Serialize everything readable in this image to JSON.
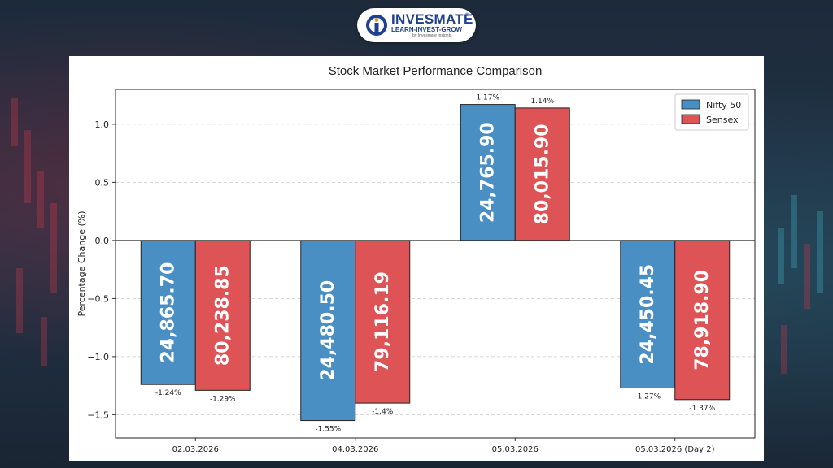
{
  "brand": {
    "name": "INVESMATE",
    "tagline": "LEARN-INVEST-GROW",
    "byline": "by Invesmate Insights",
    "registered": "®"
  },
  "chart_data": {
    "type": "bar",
    "title": "Stock Market Performance Comparison",
    "xlabel": "",
    "ylabel": "Percentage Change (%)",
    "ylim": [
      -1.7,
      1.3
    ],
    "yticks": [
      -1.5,
      -1.0,
      -0.5,
      0.0,
      0.5,
      1.0
    ],
    "ytick_labels": [
      "−1.5",
      "−1.0",
      "−0.5",
      "0.0",
      "0.5",
      "1.0"
    ],
    "grid": "horizontal dashed",
    "legend": "top-right",
    "categories": [
      "02.03.2026",
      "04.03.2026",
      "05.03.2026",
      "05.03.2026 (Day 2)"
    ],
    "series": [
      {
        "name": "Nifty 50",
        "color": "#4a8fc4",
        "values": [
          -1.24,
          -1.55,
          1.17,
          -1.27
        ],
        "value_labels": [
          "-1.24%",
          "-1.55%",
          "1.17%",
          "-1.27%"
        ],
        "bar_texts": [
          "24,865.70",
          "24,480.50",
          "24,765.90",
          "24,450.45"
        ]
      },
      {
        "name": "Sensex",
        "color": "#de5356",
        "values": [
          -1.29,
          -1.4,
          1.14,
          -1.37
        ],
        "value_labels": [
          "-1.29%",
          "-1.4%",
          "1.14%",
          "-1.37%"
        ],
        "bar_texts": [
          "80,238.85",
          "79,116.19",
          "80,015.90",
          "78,918.90"
        ]
      }
    ]
  }
}
